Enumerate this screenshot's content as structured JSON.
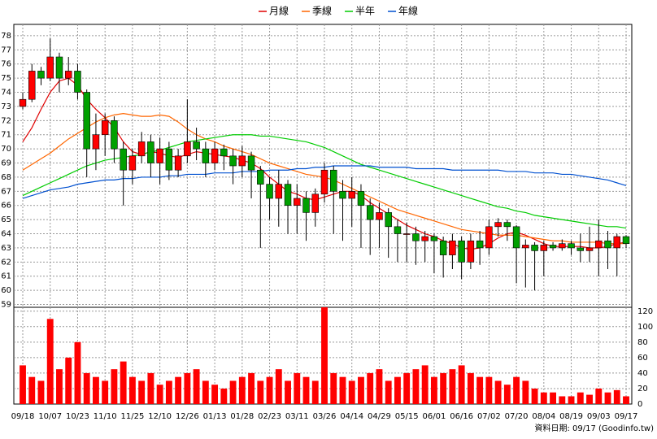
{
  "chart_data": [
    {
      "type": "candlestick",
      "up_color": "#ff0000",
      "down_color": "#00a000",
      "open": [
        73,
        73.5,
        75.5,
        75,
        76.5,
        75,
        75.5,
        74,
        70,
        71,
        72,
        70,
        68.5,
        69.5,
        70.5,
        69,
        70,
        68.5,
        69.5,
        70.5,
        70,
        69,
        70,
        69.5,
        68.8,
        69.5,
        68.5,
        67.5,
        66.5,
        67.5,
        66,
        66.5,
        65.5,
        66.8,
        68.5,
        67,
        66.5,
        67,
        66,
        65,
        65.5,
        64.5,
        64,
        64,
        63.5,
        63.8,
        63.5,
        62.5,
        63.5,
        62,
        63.5,
        63,
        64.5,
        64.8,
        64.5,
        63,
        63.2,
        62.8,
        63.2,
        63,
        63.3,
        63,
        62.8,
        63,
        63.5,
        63,
        63.8
      ],
      "high": [
        74,
        76,
        75.8,
        77.8,
        76.8,
        76.5,
        76,
        74.2,
        72.5,
        72.5,
        72.3,
        70.5,
        70,
        71.2,
        71,
        70.8,
        70.5,
        70,
        73.5,
        71.5,
        70.5,
        70.5,
        70.3,
        70,
        70.2,
        69.8,
        68.8,
        68,
        68.5,
        67.8,
        67.5,
        67,
        67.2,
        69,
        68.8,
        67.8,
        68,
        67.5,
        66.5,
        66.2,
        65.8,
        65,
        64.8,
        64.5,
        64.2,
        64,
        63.8,
        64,
        63.8,
        64,
        64.2,
        65,
        65.1,
        65,
        64.6,
        63.6,
        63.4,
        63.5,
        63.4,
        63.6,
        63.5,
        64,
        64.5,
        65,
        64.2,
        64,
        63.9
      ],
      "low": [
        72.8,
        73.3,
        74.5,
        74.8,
        74,
        74.5,
        73.5,
        68,
        68.5,
        69.5,
        69,
        66,
        67.5,
        69,
        68,
        67.5,
        67.8,
        68,
        69,
        69.2,
        68,
        68.5,
        68.5,
        67.5,
        68,
        66.5,
        63,
        65,
        64.5,
        64,
        64,
        63.5,
        64.5,
        66.2,
        64,
        63.5,
        64.5,
        63,
        62.5,
        63,
        62.3,
        62,
        62,
        61.8,
        62,
        61.2,
        60.9,
        61.5,
        60.8,
        61.5,
        61.8,
        62.5,
        63.8,
        63.5,
        60.5,
        60.2,
        60,
        61,
        62.8,
        62.8,
        62.5,
        62,
        62,
        61,
        61.5,
        61,
        63
      ],
      "close": [
        73.5,
        75.5,
        75,
        76.5,
        75,
        75.5,
        74,
        70,
        71,
        72,
        70,
        68.5,
        69.5,
        70.5,
        69,
        70,
        68.5,
        69.5,
        70.5,
        70,
        69,
        70,
        69.5,
        68.8,
        69.5,
        68.5,
        67.5,
        66.5,
        67.5,
        66,
        66.5,
        65.5,
        66.8,
        68.5,
        67,
        66.5,
        67,
        66,
        65,
        65.5,
        64.5,
        64,
        64,
        63.5,
        63.8,
        63.5,
        62.5,
        63.5,
        62,
        63.5,
        63,
        64.5,
        64.8,
        64.5,
        63,
        63.2,
        62.8,
        63.2,
        63,
        63.3,
        63,
        62.8,
        63,
        63.5,
        63,
        63.8,
        63.3
      ],
      "series": [
        {
          "name": "月線",
          "color": "#e00000",
          "values": [
            70.5,
            71.5,
            72.8,
            74,
            74.8,
            75,
            74.5,
            73.5,
            72.8,
            72.2,
            71.5,
            70.5,
            69.8,
            69.6,
            69.8,
            69.7,
            69.5,
            69.4,
            69.6,
            69.8,
            69.7,
            69.6,
            69.5,
            69.4,
            69.2,
            69,
            68.6,
            68,
            67.5,
            67,
            66.8,
            66.5,
            66.4,
            66.6,
            66.8,
            67,
            67,
            66.7,
            66.2,
            65.8,
            65.4,
            65,
            64.6,
            64.3,
            64,
            63.8,
            63.5,
            63.3,
            63,
            62.9,
            63,
            63.3,
            63.7,
            64,
            64.1,
            63.9,
            63.6,
            63.3,
            63.1,
            63.1,
            63.1,
            63.1,
            63,
            63,
            63.1,
            63.3,
            63.4
          ]
        },
        {
          "name": "季線",
          "color": "#ff6600",
          "values": [
            68.5,
            68.9,
            69.3,
            69.7,
            70.2,
            70.7,
            71.1,
            71.5,
            71.9,
            72.2,
            72.4,
            72.5,
            72.4,
            72.3,
            72.3,
            72.4,
            72.3,
            71.9,
            71.4,
            71,
            70.7,
            70.5,
            70.2,
            70,
            69.8,
            69.6,
            69.3,
            69,
            68.8,
            68.6,
            68.4,
            68.2,
            68.1,
            68,
            67.8,
            67.5,
            67.2,
            66.9,
            66.6,
            66.3,
            66,
            65.7,
            65.5,
            65.3,
            65.1,
            64.9,
            64.7,
            64.5,
            64.3,
            64.2,
            64.1,
            64,
            63.9,
            63.9,
            63.9,
            63.8,
            63.7,
            63.6,
            63.5,
            63.5,
            63.4,
            63.4,
            63.4,
            63.4,
            63.3,
            63.3,
            63.3
          ]
        },
        {
          "name": "半年",
          "color": "#00cc00",
          "values": [
            66.7,
            67,
            67.3,
            67.6,
            67.9,
            68.2,
            68.5,
            68.8,
            69,
            69.2,
            69.3,
            69.4,
            69.5,
            69.6,
            69.8,
            69.9,
            70.1,
            70.3,
            70.5,
            70.6,
            70.7,
            70.8,
            70.9,
            71,
            71,
            71,
            70.9,
            70.9,
            70.8,
            70.7,
            70.6,
            70.5,
            70.3,
            70.1,
            69.8,
            69.5,
            69.2,
            68.9,
            68.7,
            68.5,
            68.3,
            68.1,
            67.9,
            67.7,
            67.5,
            67.3,
            67.1,
            66.9,
            66.7,
            66.5,
            66.3,
            66.1,
            65.9,
            65.8,
            65.6,
            65.5,
            65.3,
            65.2,
            65.1,
            65,
            64.9,
            64.8,
            64.7,
            64.6,
            64.5,
            64.5,
            64.4
          ]
        },
        {
          "name": "年線",
          "color": "#0050d0",
          "values": [
            66.5,
            66.7,
            66.9,
            67.1,
            67.2,
            67.3,
            67.5,
            67.6,
            67.7,
            67.8,
            67.8,
            67.9,
            67.9,
            68,
            68,
            68,
            68.1,
            68.1,
            68.2,
            68.2,
            68.2,
            68.3,
            68.3,
            68.3,
            68.4,
            68.4,
            68.4,
            68.5,
            68.5,
            68.5,
            68.6,
            68.6,
            68.7,
            68.7,
            68.8,
            68.8,
            68.8,
            68.8,
            68.8,
            68.7,
            68.7,
            68.7,
            68.7,
            68.6,
            68.6,
            68.6,
            68.6,
            68.5,
            68.5,
            68.5,
            68.5,
            68.5,
            68.5,
            68.4,
            68.4,
            68.4,
            68.3,
            68.3,
            68.3,
            68.2,
            68.2,
            68.1,
            68,
            67.9,
            67.8,
            67.6,
            67.4
          ]
        }
      ],
      "ylim": [
        58.8,
        78.8
      ],
      "yticks": [
        59,
        60,
        61,
        62,
        63,
        64,
        65,
        66,
        67,
        68,
        69,
        70,
        71,
        72,
        73,
        74,
        75,
        76,
        77,
        78
      ],
      "grid": true
    },
    {
      "type": "bar",
      "color": "#ff0000",
      "categories": [
        "09/18",
        null,
        null,
        "10/07",
        null,
        null,
        "10/23",
        null,
        null,
        "11/10",
        null,
        null,
        "11/25",
        null,
        null,
        "12/10",
        null,
        null,
        "12/26",
        null,
        null,
        "01/13",
        null,
        null,
        "01/28",
        null,
        null,
        "02/23",
        null,
        null,
        "03/11",
        null,
        null,
        "03/26",
        null,
        null,
        "04/14",
        null,
        null,
        "04/29",
        null,
        null,
        "05/15",
        null,
        null,
        "06/01",
        null,
        null,
        "06/16",
        null,
        null,
        "07/02",
        null,
        null,
        "07/20",
        null,
        null,
        "08/04",
        null,
        null,
        "08/19",
        null,
        null,
        "09/03",
        null,
        null,
        "09/17"
      ],
      "values": [
        50,
        35,
        30,
        110,
        45,
        60,
        80,
        40,
        35,
        30,
        45,
        55,
        35,
        30,
        40,
        25,
        30,
        35,
        40,
        45,
        30,
        25,
        20,
        30,
        35,
        40,
        30,
        35,
        45,
        30,
        40,
        35,
        30,
        125,
        40,
        35,
        30,
        35,
        40,
        45,
        30,
        35,
        40,
        45,
        50,
        35,
        40,
        45,
        50,
        40,
        35,
        35,
        30,
        25,
        35,
        30,
        20,
        15,
        15,
        10,
        10,
        15,
        12,
        20,
        15,
        18,
        10
      ],
      "ylim": [
        0,
        125
      ],
      "yticks": [
        0,
        20,
        40,
        60,
        80,
        100,
        120
      ],
      "grid": true,
      "source": "資料日期: 09/17 (Goodinfo.tw)"
    }
  ]
}
